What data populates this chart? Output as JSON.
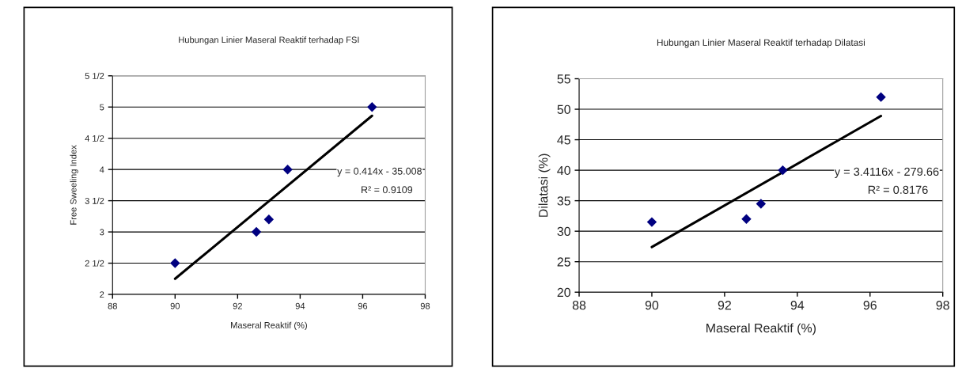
{
  "chart_data": [
    {
      "type": "scatter",
      "title": "Hubungan Linier Maseral Reaktif terhadap FSI",
      "xlabel": "Maseral Reaktif (%)",
      "ylabel": "Free Sweeling Index",
      "series": [
        {
          "type": "scatter",
          "color": "#000080",
          "marker": "diamond",
          "x": [
            90,
            92.6,
            93,
            93.6,
            96.3
          ],
          "values": [
            2.5,
            3,
            3.2,
            4,
            5
          ]
        },
        {
          "type": "line",
          "color": "#000000",
          "marker": "none",
          "x": [
            90,
            96.3
          ],
          "values": [
            2.25,
            4.86
          ]
        }
      ],
      "xlim": [
        88,
        98
      ],
      "xticks": [
        88,
        90,
        92,
        94,
        96,
        98
      ],
      "ylim": [
        2,
        5.5
      ],
      "yticks": [
        2,
        {
          "value": 2.5,
          "label": "2 1/2"
        },
        3,
        {
          "value": 3.5,
          "label": "3 1/2"
        },
        4,
        {
          "value": 4.5,
          "label": "4 1/2"
        },
        5,
        {
          "value": 5.5,
          "label": "5 1/2"
        }
      ],
      "grid": "y",
      "legend": false,
      "annotations": [
        "y = 0.414x - 35.008",
        "R² = 0.9109"
      ]
    },
    {
      "type": "scatter",
      "title": "Hubungan Linier Maseral Reaktif terhadap Dilatasi",
      "xlabel": "Maseral Reaktif (%)",
      "ylabel": "Dilatasi (%)",
      "series": [
        {
          "type": "scatter",
          "color": "#000080",
          "marker": "diamond",
          "x": [
            90,
            92.6,
            93,
            93.6,
            96.3
          ],
          "values": [
            31.5,
            32,
            34.5,
            40,
            52
          ]
        },
        {
          "type": "line",
          "color": "#000000",
          "marker": "none",
          "x": [
            90,
            96.3
          ],
          "values": [
            27.4,
            48.9
          ]
        }
      ],
      "xlim": [
        88,
        98
      ],
      "xticks": [
        88,
        90,
        92,
        94,
        96,
        98
      ],
      "ylim": [
        20,
        55
      ],
      "yticks": [
        20,
        25,
        30,
        35,
        40,
        45,
        50,
        55
      ],
      "grid": "y",
      "legend": false,
      "annotations": [
        "y = 3.4116x - 279.66",
        "R² = 0.8176"
      ]
    }
  ]
}
